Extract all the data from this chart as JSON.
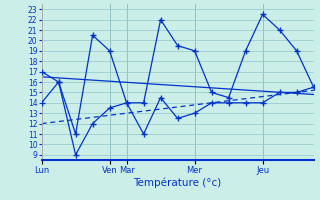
{
  "title": "Température (°c)",
  "background_color": "#cceee8",
  "grid_color": "#99cccc",
  "line_color": "#0033cc",
  "xlim": [
    0,
    16
  ],
  "ylim": [
    8.5,
    23.5
  ],
  "yticks": [
    9,
    10,
    11,
    12,
    13,
    14,
    15,
    16,
    17,
    18,
    19,
    20,
    21,
    22,
    23
  ],
  "day_positions": [
    0,
    4,
    5,
    9,
    13
  ],
  "day_labels": [
    "Lun",
    "Ven",
    "Mar",
    "Mer",
    "Jeu"
  ],
  "series_max_x": [
    0,
    1,
    2,
    3,
    4,
    5,
    6,
    7,
    8,
    9,
    10,
    11,
    12,
    13,
    14,
    15,
    16
  ],
  "series_max_y": [
    17,
    16,
    11,
    20.5,
    19,
    14,
    14,
    22,
    19.5,
    19,
    15,
    14.5,
    19,
    22.5,
    21,
    19,
    15.5
  ],
  "series_min_x": [
    0,
    1,
    2,
    3,
    4,
    5,
    6,
    7,
    8,
    9,
    10,
    11,
    12,
    13,
    14,
    15,
    16
  ],
  "series_min_y": [
    14,
    16,
    9,
    12,
    13.5,
    14,
    11,
    14.5,
    12.5,
    13,
    14,
    14,
    14,
    14,
    15,
    15,
    15.5
  ],
  "trend1_x": [
    0,
    16
  ],
  "trend1_y": [
    16.5,
    14.8
  ],
  "trend2_x": [
    0,
    16
  ],
  "trend2_y": [
    12.0,
    15.2
  ]
}
